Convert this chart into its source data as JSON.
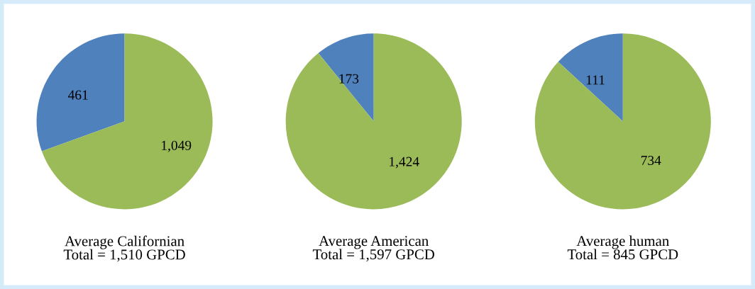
{
  "chart_data": [
    {
      "type": "pie",
      "xlabel": "Average Californian\nTotal = 1,510 GPCD",
      "categories": [
        null,
        null
      ],
      "values": [
        461,
        1049
      ],
      "colors": [
        "#4f81bd",
        "#9bbb59"
      ],
      "value_labels": [
        "461",
        "1,049"
      ]
    },
    {
      "type": "pie",
      "xlabel": "Average American\nTotal = 1,597 GPCD",
      "categories": [
        null,
        null
      ],
      "values": [
        173,
        1424
      ],
      "colors": [
        "#4f81bd",
        "#9bbb59"
      ],
      "value_labels": [
        "173",
        "1,424"
      ]
    },
    {
      "type": "pie",
      "xlabel": "Average human\nTotal = 845 GPCD",
      "categories": [
        null,
        null
      ],
      "values": [
        111,
        734
      ],
      "colors": [
        "#4f81bd",
        "#9bbb59"
      ],
      "value_labels": [
        "111",
        "734"
      ]
    }
  ]
}
